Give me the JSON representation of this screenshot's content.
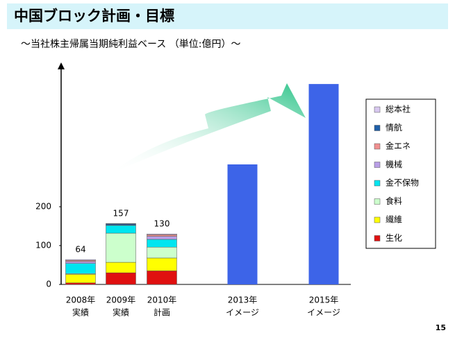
{
  "header": {
    "title": "中国ブロック計画・目標",
    "subtitle": "～当社株主帰属当期純利益ベース （単位:億円）～",
    "page_number": "15"
  },
  "chart_data": {
    "type": "stacked-bar",
    "categories": [
      [
        "2008年",
        "実績"
      ],
      [
        "2009年",
        "実績"
      ],
      [
        "2010年",
        "計画"
      ],
      [
        "2013年",
        "イメージ"
      ],
      [
        "2015年",
        "イメージ"
      ]
    ],
    "series": [
      {
        "name": "生化",
        "color": "#e01010",
        "values": [
          4,
          30,
          35,
          null,
          null
        ]
      },
      {
        "name": "繊維",
        "color": "#ffff00",
        "values": [
          22,
          27,
          33,
          null,
          null
        ]
      },
      {
        "name": "食料",
        "color": "#ccffcc",
        "values": [
          2,
          75,
          28,
          null,
          null
        ]
      },
      {
        "name": "金不保物",
        "color": "#00e5f0",
        "values": [
          26,
          20,
          20,
          null,
          null
        ]
      },
      {
        "name": "機械",
        "color": "#b99ee6",
        "values": [
          5,
          1,
          8,
          null,
          null
        ]
      },
      {
        "name": "金エネ",
        "color": "#f09090",
        "values": [
          3,
          0,
          4,
          null,
          null
        ]
      },
      {
        "name": "情航",
        "color": "#1f5fa8",
        "values": [
          0,
          3,
          0,
          null,
          null
        ]
      },
      {
        "name": "総本社",
        "color": "#d8c8f0",
        "values": [
          2,
          1,
          2,
          null,
          null
        ]
      }
    ],
    "totals": [
      64,
      157,
      130,
      null,
      null
    ],
    "target_values": [
      null,
      null,
      null,
      309,
      516
    ],
    "target_color": "#3d64e8",
    "ylim": [
      0,
      568
    ],
    "yticks": [
      0,
      100,
      200
    ]
  }
}
